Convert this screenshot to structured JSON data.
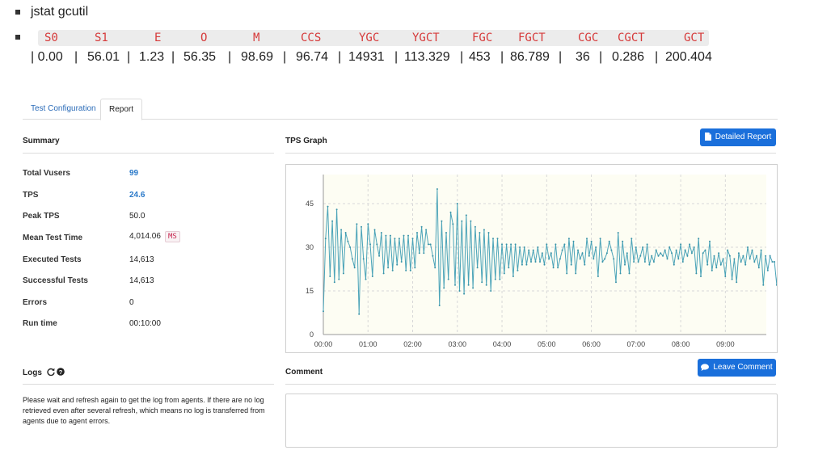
{
  "heading": "jstat gcutil",
  "gcutil": {
    "columns": [
      "S0",
      "S1",
      "E",
      "O",
      "M",
      "CCS",
      "YGC",
      "YGCT",
      "FGC",
      "FGCT",
      "CGC",
      "CGCT",
      "GCT"
    ],
    "values": [
      "| 0.00",
      "|",
      "56.01",
      "|",
      "1.23",
      "|",
      "56.35",
      "|",
      "98.69",
      "|",
      "96.74",
      "|",
      "14931",
      "|",
      "113.329",
      "|",
      "453",
      "|",
      "86.789",
      "|",
      "36",
      "|",
      "0.286",
      "|",
      "200.404"
    ]
  },
  "tabs": [
    "Test Configuration",
    "Report"
  ],
  "summary": {
    "title": "Summary",
    "rows": [
      {
        "label": "Total Vusers",
        "value": "99"
      },
      {
        "label": "TPS",
        "value": "24.6"
      },
      {
        "label": "Peak TPS",
        "value": "50.0"
      },
      {
        "label": "Mean Test Time",
        "value": "4,014.06",
        "badge": "MS"
      },
      {
        "label": "Executed Tests",
        "value": "14,613"
      },
      {
        "label": "Successful Tests",
        "value": "14,613"
      },
      {
        "label": "Errors",
        "value": "0"
      },
      {
        "label": "Run time",
        "value": "00:10:00"
      }
    ]
  },
  "graph": {
    "title": "TPS Graph",
    "button": "Detailed Report",
    "icon": "file-icon"
  },
  "logs": {
    "title": "Logs",
    "icons": [
      "refresh-icon",
      "help-icon"
    ],
    "text": "Please wait and refresh again to get the log from agents. If there are no log retrieved even after several refresh, which means no log is transferred from agents due to agent errors."
  },
  "comment": {
    "title": "Comment",
    "button": "Leave Comment",
    "icon": "comment-icon"
  },
  "colors": {
    "accent": "#1a6fdb",
    "line": "#4aa3b8",
    "plot_bg": "#fdfdf3"
  },
  "chart_data": {
    "type": "line",
    "ylim": [
      0,
      55
    ],
    "yticks": [
      0,
      15,
      30,
      45
    ],
    "xlim": [
      0,
      595
    ],
    "xticks": [
      {
        "x": 0,
        "label": "00:00"
      },
      {
        "x": 60,
        "label": "01:00"
      },
      {
        "x": 120,
        "label": "02:00"
      },
      {
        "x": 180,
        "label": "03:00"
      },
      {
        "x": 240,
        "label": "04:00"
      },
      {
        "x": 300,
        "label": "05:00"
      },
      {
        "x": 360,
        "label": "06:00"
      },
      {
        "x": 420,
        "label": "07:00"
      },
      {
        "x": 480,
        "label": "08:00"
      },
      {
        "x": 540,
        "label": "09:00"
      }
    ],
    "interval_seconds": 3,
    "values": [
      8,
      33,
      44,
      20,
      39,
      18,
      43,
      19,
      36,
      21,
      35,
      32,
      30,
      26,
      23,
      38,
      7,
      37,
      26,
      19,
      38,
      31,
      20,
      36,
      31,
      27,
      35,
      21,
      34,
      23,
      34,
      22,
      33,
      24,
      33,
      25,
      34,
      22,
      34,
      22,
      33,
      23,
      35,
      28,
      37,
      28,
      36,
      31,
      31,
      27,
      23,
      50,
      10,
      39,
      16,
      35,
      19,
      42,
      38,
      17,
      45,
      15,
      39,
      14,
      41,
      17,
      39,
      16,
      37,
      23,
      35,
      18,
      36,
      17,
      35,
      15,
      33,
      19,
      33,
      19,
      31,
      21,
      31,
      23,
      31,
      20,
      31,
      22,
      30,
      24,
      30,
      24,
      29,
      25,
      29,
      25,
      30,
      25,
      28,
      24,
      31,
      26,
      28,
      23,
      31,
      23,
      26,
      29,
      31,
      21,
      33,
      24,
      32,
      21,
      29,
      26,
      28,
      24,
      33,
      27,
      32,
      26,
      30,
      20,
      33,
      25,
      26,
      28,
      32,
      29,
      26,
      18,
      35,
      21,
      32,
      24,
      28,
      21,
      33,
      25,
      30,
      25,
      27,
      30,
      25,
      31,
      24,
      27,
      25,
      29,
      27,
      28,
      27,
      29,
      26,
      30,
      28,
      24,
      29,
      26,
      31,
      25,
      29,
      27,
      31,
      28,
      30,
      21,
      33,
      20,
      28,
      29,
      24,
      32,
      22,
      27,
      23,
      28,
      24,
      26,
      20,
      29,
      27,
      19,
      26,
      18,
      28,
      25,
      27,
      24,
      30,
      26,
      29,
      25,
      27,
      23,
      29,
      17,
      27,
      22,
      27,
      25,
      25,
      17,
      31,
      5,
      38,
      17,
      28,
      24,
      24,
      24,
      25,
      23,
      28,
      18,
      28,
      22,
      25,
      24,
      26,
      23,
      25,
      22,
      24,
      17,
      30,
      24,
      28,
      25,
      25,
      18,
      23,
      18,
      22,
      18,
      27,
      20,
      26,
      17,
      22,
      20,
      26,
      20,
      25,
      18,
      26,
      19,
      23,
      20,
      31,
      17,
      27,
      16,
      28,
      18,
      28,
      16,
      26,
      13,
      30,
      20,
      29,
      19,
      24,
      22,
      27,
      20,
      25,
      22,
      25,
      19,
      26,
      17,
      24,
      20,
      26,
      17,
      31,
      15,
      27,
      14,
      28,
      18,
      32,
      13,
      28,
      18,
      28,
      15,
      29,
      15,
      26,
      12,
      29,
      18,
      24,
      6,
      35,
      20,
      19,
      25,
      29,
      25,
      22,
      30,
      22,
      15,
      24,
      16,
      20,
      23,
      15,
      25,
      22,
      16,
      19,
      15,
      16,
      19,
      24,
      16,
      21,
      17,
      22,
      15,
      24,
      15,
      18,
      22,
      18,
      23,
      17,
      24,
      16,
      15,
      17,
      18,
      16,
      15,
      24,
      15,
      22,
      16,
      23,
      17,
      25,
      17,
      15,
      18,
      22,
      15,
      24,
      16,
      19,
      22,
      15,
      19,
      24,
      15,
      20,
      15,
      24,
      16,
      22,
      15,
      18,
      24,
      17,
      15,
      25,
      16,
      17,
      24,
      19,
      15,
      23,
      16,
      17,
      15,
      21,
      16,
      24,
      17,
      15,
      24,
      16,
      18,
      15,
      24,
      17,
      15,
      20,
      16,
      24,
      15,
      22,
      17,
      15,
      23,
      16,
      19,
      15,
      24,
      17,
      15,
      22,
      16,
      24
    ]
  }
}
